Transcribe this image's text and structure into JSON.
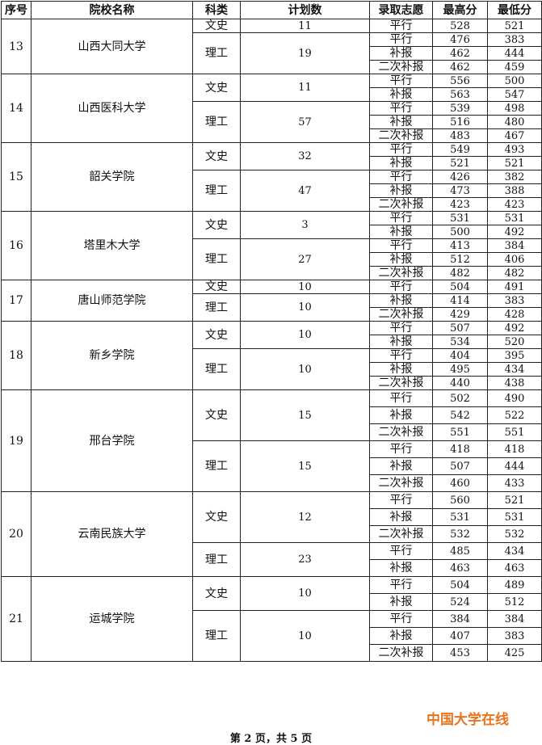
{
  "header": [
    "序号",
    "院校名称",
    "科类",
    "计划数",
    "录取志愿",
    "最高分",
    "最低分"
  ],
  "schools": [
    {
      "no": "13",
      "name": "山西大同大学",
      "groups": [
        {
          "subject": "文史",
          "plan": "11",
          "rows": [
            {
              "type": "平行",
              "max": "528",
              "min": "521"
            }
          ]
        },
        {
          "subject": "理工",
          "plan": "19",
          "rows": [
            {
              "type": "平行",
              "max": "476",
              "min": "383"
            },
            {
              "type": "补报",
              "max": "462",
              "min": "444"
            },
            {
              "type": "二次补报",
              "max": "462",
              "min": "459"
            }
          ]
        }
      ]
    },
    {
      "no": "14",
      "name": "山西医科大学",
      "groups": [
        {
          "subject": "文史",
          "plan": "11",
          "rows": [
            {
              "type": "平行",
              "max": "556",
              "min": "500"
            },
            {
              "type": "补报",
              "max": "563",
              "min": "547"
            }
          ]
        },
        {
          "subject": "理工",
          "plan": "57",
          "rows": [
            {
              "type": "平行",
              "max": "539",
              "min": "498"
            },
            {
              "type": "补报",
              "max": "516",
              "min": "480"
            },
            {
              "type": "二次补报",
              "max": "483",
              "min": "467"
            }
          ]
        }
      ]
    },
    {
      "no": "15",
      "name": "韶关学院",
      "groups": [
        {
          "subject": "文史",
          "plan": "32",
          "rows": [
            {
              "type": "平行",
              "max": "549",
              "min": "493"
            },
            {
              "type": "补报",
              "max": "521",
              "min": "521"
            }
          ]
        },
        {
          "subject": "理工",
          "plan": "47",
          "rows": [
            {
              "type": "平行",
              "max": "426",
              "min": "382"
            },
            {
              "type": "补报",
              "max": "473",
              "min": "388"
            },
            {
              "type": "二次补报",
              "max": "423",
              "min": "423"
            }
          ]
        }
      ]
    },
    {
      "no": "16",
      "name": "塔里木大学",
      "groups": [
        {
          "subject": "文史",
          "plan": "3",
          "rows": [
            {
              "type": "平行",
              "max": "531",
              "min": "531"
            },
            {
              "type": "补报",
              "max": "500",
              "min": "492"
            }
          ]
        },
        {
          "subject": "理工",
          "plan": "27",
          "rows": [
            {
              "type": "平行",
              "max": "413",
              "min": "384"
            },
            {
              "type": "补报",
              "max": "512",
              "min": "406"
            },
            {
              "type": "二次补报",
              "max": "482",
              "min": "482"
            }
          ]
        }
      ]
    },
    {
      "no": "17",
      "name": "唐山师范学院",
      "groups": [
        {
          "subject": "文史",
          "plan": "10",
          "rows": [
            {
              "type": "平行",
              "max": "504",
              "min": "491"
            }
          ]
        },
        {
          "subject": "理工",
          "plan": "10",
          "rows": [
            {
              "type": "补报",
              "max": "414",
              "min": "383"
            },
            {
              "type": "二次补报",
              "max": "429",
              "min": "428"
            }
          ]
        }
      ]
    },
    {
      "no": "18",
      "name": "新乡学院",
      "groups": [
        {
          "subject": "文史",
          "plan": "10",
          "rows": [
            {
              "type": "平行",
              "max": "507",
              "min": "492"
            },
            {
              "type": "补报",
              "max": "534",
              "min": "520"
            }
          ]
        },
        {
          "subject": "理工",
          "plan": "10",
          "rows": [
            {
              "type": "平行",
              "max": "404",
              "min": "395"
            },
            {
              "type": "补报",
              "max": "495",
              "min": "434"
            },
            {
              "type": "二次补报",
              "max": "440",
              "min": "438"
            }
          ]
        }
      ]
    },
    {
      "no": "19",
      "name": "邢台学院",
      "tall": true,
      "groups": [
        {
          "subject": "文史",
          "plan": "15",
          "rows": [
            {
              "type": "平行",
              "max": "502",
              "min": "490"
            },
            {
              "type": "补报",
              "max": "542",
              "min": "522"
            },
            {
              "type": "二次补报",
              "max": "551",
              "min": "551"
            }
          ]
        },
        {
          "subject": "理工",
          "plan": "15",
          "rows": [
            {
              "type": "平行",
              "max": "418",
              "min": "418"
            },
            {
              "type": "补报",
              "max": "507",
              "min": "444"
            },
            {
              "type": "二次补报",
              "max": "460",
              "min": "433"
            }
          ]
        }
      ]
    },
    {
      "no": "20",
      "name": "云南民族大学",
      "tall": true,
      "groups": [
        {
          "subject": "文史",
          "plan": "12",
          "rows": [
            {
              "type": "平行",
              "max": "560",
              "min": "521"
            },
            {
              "type": "补报",
              "max": "531",
              "min": "531"
            },
            {
              "type": "二次补报",
              "max": "532",
              "min": "532"
            }
          ]
        },
        {
          "subject": "理工",
          "plan": "23",
          "rows": [
            {
              "type": "平行",
              "max": "485",
              "min": "434"
            },
            {
              "type": "补报",
              "max": "463",
              "min": "463"
            }
          ]
        }
      ]
    },
    {
      "no": "21",
      "name": "运城学院",
      "tall": true,
      "groups": [
        {
          "subject": "文史",
          "plan": "10",
          "rows": [
            {
              "type": "平行",
              "max": "504",
              "min": "489"
            },
            {
              "type": "补报",
              "max": "524",
              "min": "512"
            }
          ]
        },
        {
          "subject": "理工",
          "plan": "10",
          "rows": [
            {
              "type": "平行",
              "max": "384",
              "min": "384"
            },
            {
              "type": "补报",
              "max": "407",
              "min": "383"
            },
            {
              "type": "二次补报",
              "max": "453",
              "min": "425"
            }
          ]
        }
      ]
    }
  ],
  "watermark": "中国大学在线",
  "footer": "第 2 页，共 5 页",
  "colors": {
    "watermark": "#e8741e"
  }
}
